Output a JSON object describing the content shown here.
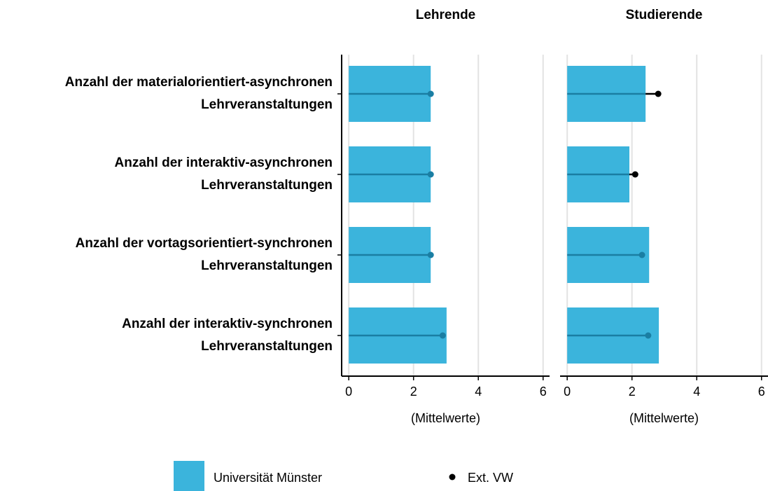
{
  "chart_data": {
    "type": "bar",
    "panels": [
      "Lehrende",
      "Studierende"
    ],
    "categories": [
      [
        "Anzahl der materialorientiert-asynchronen",
        "Lehrveranstaltungen"
      ],
      [
        "Anzahl der interaktiv-asynchronen",
        "Lehrveranstaltungen"
      ],
      [
        "Anzahl der vortagsorientiert-synchronen",
        "Lehrveranstaltungen"
      ],
      [
        "Anzahl der interaktiv-synchronen",
        "Lehrveranstaltungen"
      ]
    ],
    "series": [
      {
        "name": "Universität Münster",
        "color": "#3bb4dc",
        "values": [
          [
            2.53,
            2.53,
            2.53,
            3.02
          ],
          [
            2.42,
            1.92,
            2.53,
            2.83
          ]
        ]
      },
      {
        "name": "Ext. VW",
        "color": "#000000",
        "values": [
          [
            2.53,
            2.53,
            2.53,
            2.9
          ],
          [
            2.81,
            2.1,
            2.31,
            2.5
          ]
        ]
      }
    ],
    "xlim": [
      -0.22,
      6.2
    ],
    "xticks": [
      0,
      2,
      4,
      6
    ],
    "xlabel": "(Mittelwerte)",
    "grid": true
  }
}
